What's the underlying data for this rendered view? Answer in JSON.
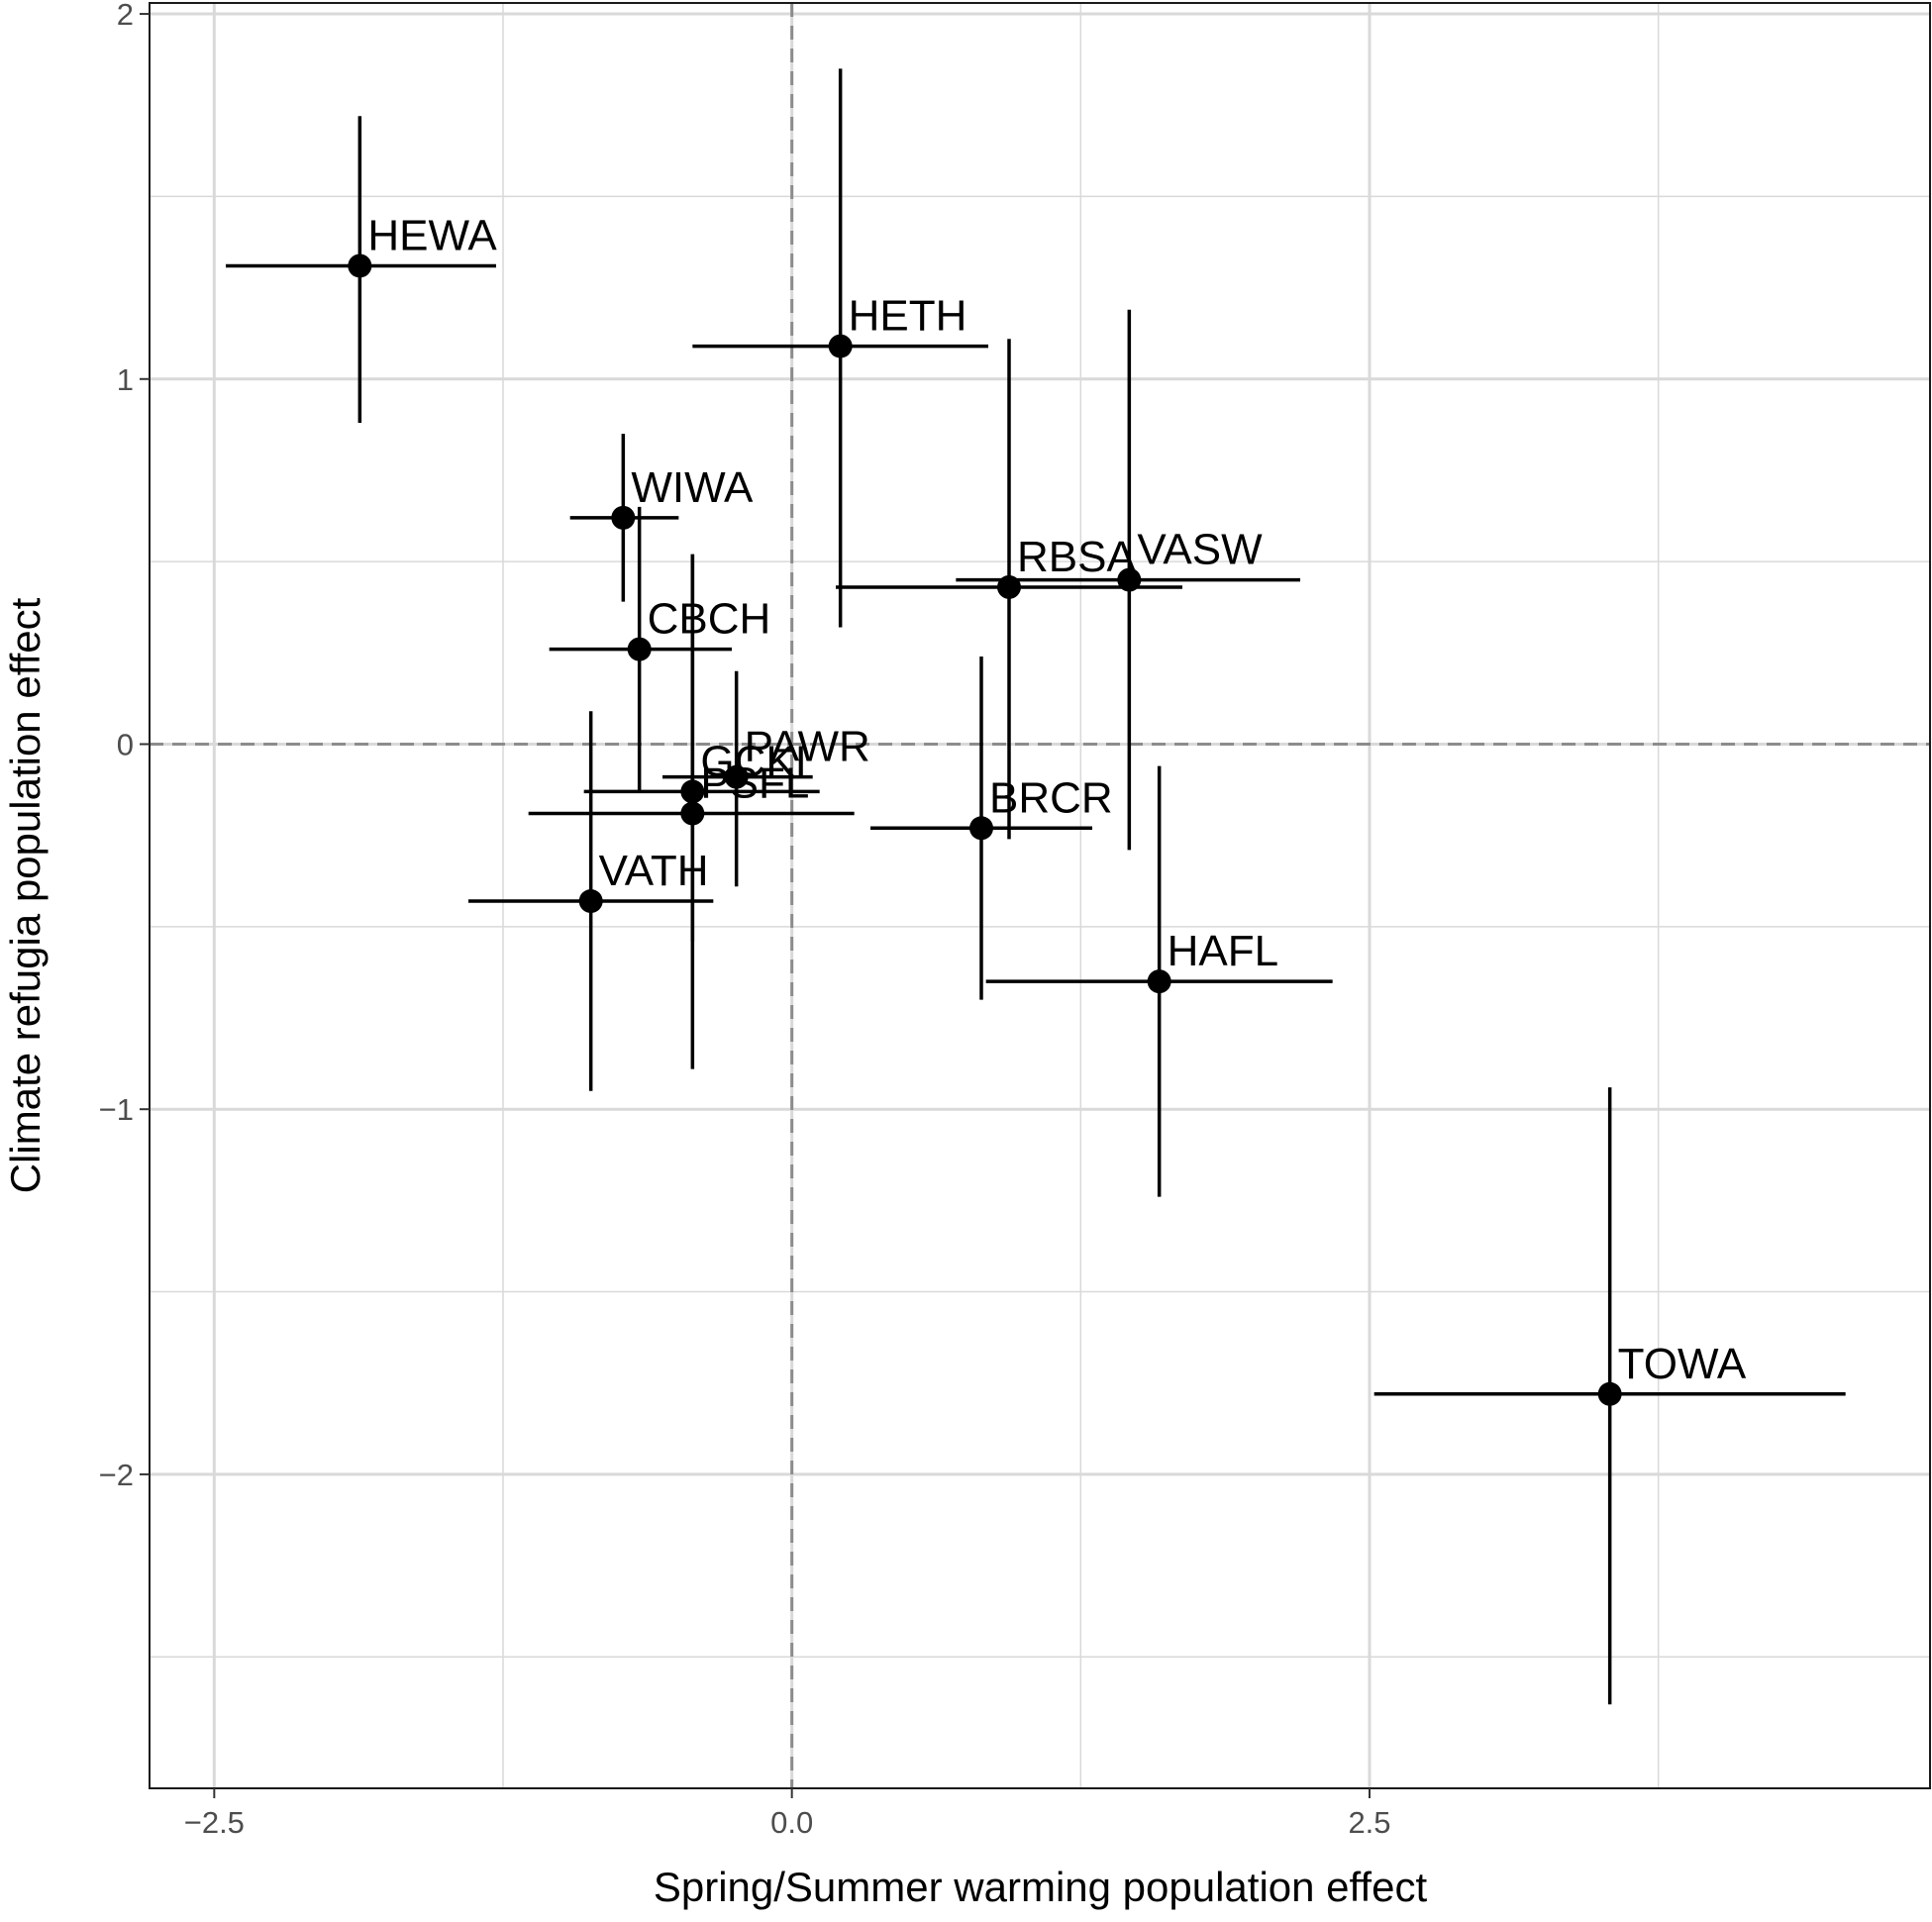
{
  "chart_data": {
    "type": "scatter",
    "title": "",
    "xlabel": "Spring/Summer warming population effect",
    "ylabel": "Climate refugia population effect",
    "xlim": [
      -2.78,
      4.93
    ],
    "ylim": [
      -2.86,
      2.03
    ],
    "x_ticks": [
      -2.5,
      0.0,
      2.5
    ],
    "x_tick_labels": [
      "−2.5",
      "0.0",
      "2.5"
    ],
    "y_ticks": [
      -2,
      -1,
      0,
      1,
      2
    ],
    "y_tick_labels": [
      "−2",
      "−1",
      "0",
      "1",
      "2"
    ],
    "grid": true,
    "reference_lines": {
      "x": 0,
      "y": 0,
      "style": "dashed"
    },
    "legend": "none",
    "colors": {
      "points": "#000000",
      "grid": "#d9d9d9",
      "reference": "#8c8c8c"
    },
    "points": [
      {
        "label": "HEWA",
        "x": -1.87,
        "y": 1.31,
        "x_low": -2.45,
        "x_high": -1.28,
        "y_low": 0.88,
        "y_high": 1.72
      },
      {
        "label": "HETH",
        "x": 0.21,
        "y": 1.09,
        "x_low": -0.43,
        "x_high": 0.85,
        "y_low": 0.32,
        "y_high": 1.85
      },
      {
        "label": "WIWA",
        "x": -0.73,
        "y": 0.62,
        "x_low": -0.96,
        "x_high": -0.49,
        "y_low": 0.39,
        "y_high": 0.85
      },
      {
        "label": "CBCH",
        "x": -0.66,
        "y": 0.26,
        "x_low": -1.05,
        "x_high": -0.26,
        "y_low": -0.13,
        "y_high": 0.65
      },
      {
        "label": "RBSA",
        "x": 0.94,
        "y": 0.43,
        "x_low": 0.19,
        "x_high": 1.69,
        "y_low": -0.26,
        "y_high": 1.11
      },
      {
        "label": "VASW",
        "x": 1.46,
        "y": 0.45,
        "x_low": 0.71,
        "x_high": 2.2,
        "y_low": -0.29,
        "y_high": 1.19
      },
      {
        "label": "PAWR",
        "x": -0.24,
        "y": -0.09,
        "x_low": -0.56,
        "x_high": 0.09,
        "y_low": -0.39,
        "y_high": 0.2
      },
      {
        "label": "GCKI",
        "x": -0.43,
        "y": -0.13,
        "x_low": -0.9,
        "x_high": 0.12,
        "y_low": -0.54,
        "y_high": 0.52
      },
      {
        "label": "PSFL",
        "x": -0.43,
        "y": -0.19,
        "x_low": -1.14,
        "x_high": 0.27,
        "y_low": -0.89,
        "y_high": 0.52
      },
      {
        "label": "BRCR",
        "x": 0.82,
        "y": -0.23,
        "x_low": 0.34,
        "x_high": 1.3,
        "y_low": -0.7,
        "y_high": 0.24
      },
      {
        "label": "VATH",
        "x": -0.87,
        "y": -0.43,
        "x_low": -1.4,
        "x_high": -0.34,
        "y_low": -0.95,
        "y_high": 0.09
      },
      {
        "label": "HAFL",
        "x": 1.59,
        "y": -0.65,
        "x_low": 0.84,
        "x_high": 2.34,
        "y_low": -1.24,
        "y_high": -0.06
      },
      {
        "label": "TOWA",
        "x": 3.54,
        "y": -1.78,
        "x_low": 2.52,
        "x_high": 4.56,
        "y_low": -2.63,
        "y_high": -0.94
      }
    ]
  }
}
